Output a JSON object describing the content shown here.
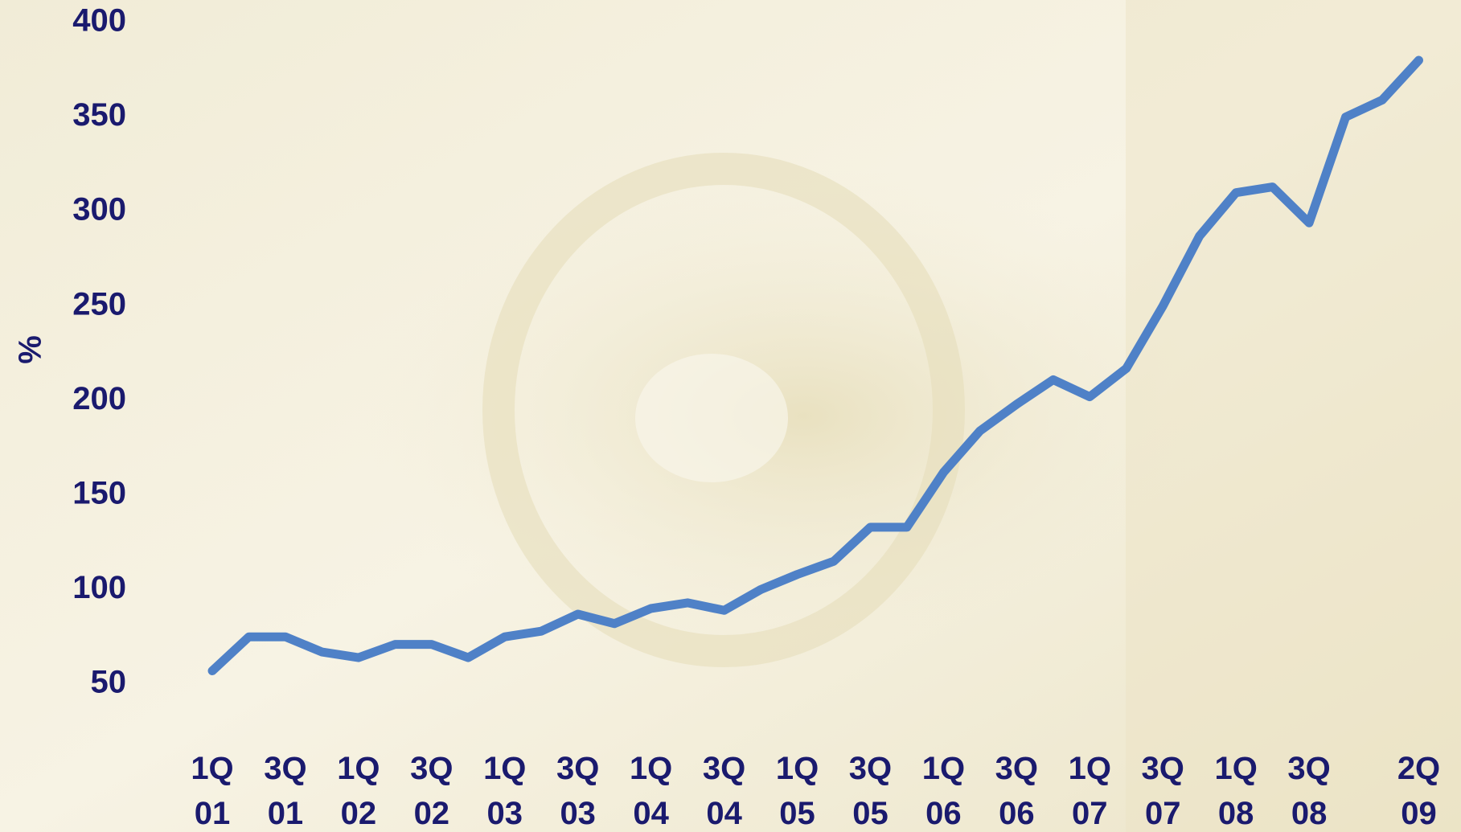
{
  "chart_data": {
    "type": "line",
    "y_label": "%",
    "categories": [
      "1Q\n01",
      null,
      "3Q\n01",
      null,
      "1Q\n02",
      null,
      "3Q\n02",
      null,
      "1Q\n03",
      null,
      "3Q\n03",
      null,
      "1Q\n04",
      null,
      "3Q\n04",
      null,
      "1Q\n05",
      null,
      "3Q\n05",
      null,
      "1Q\n06",
      null,
      "3Q\n06",
      null,
      "1Q\n07",
      null,
      "3Q\n07",
      null,
      "1Q\n08",
      null,
      "3Q\n08",
      null,
      null,
      "2Q\n09"
    ],
    "series": [
      {
        "color": "#4f81c7",
        "values": [
          57,
          75,
          75,
          67,
          64,
          71,
          71,
          64,
          75,
          78,
          87,
          82,
          90,
          93,
          89,
          100,
          108,
          115,
          133,
          133,
          162,
          184,
          198,
          211,
          202,
          217,
          250,
          287,
          310,
          313,
          294,
          350,
          359,
          380
        ]
      }
    ],
    "ylim": [
      50,
      400
    ],
    "yticks": [
      50,
      100,
      150,
      200,
      250,
      300,
      350,
      400
    ],
    "grid": false
  }
}
